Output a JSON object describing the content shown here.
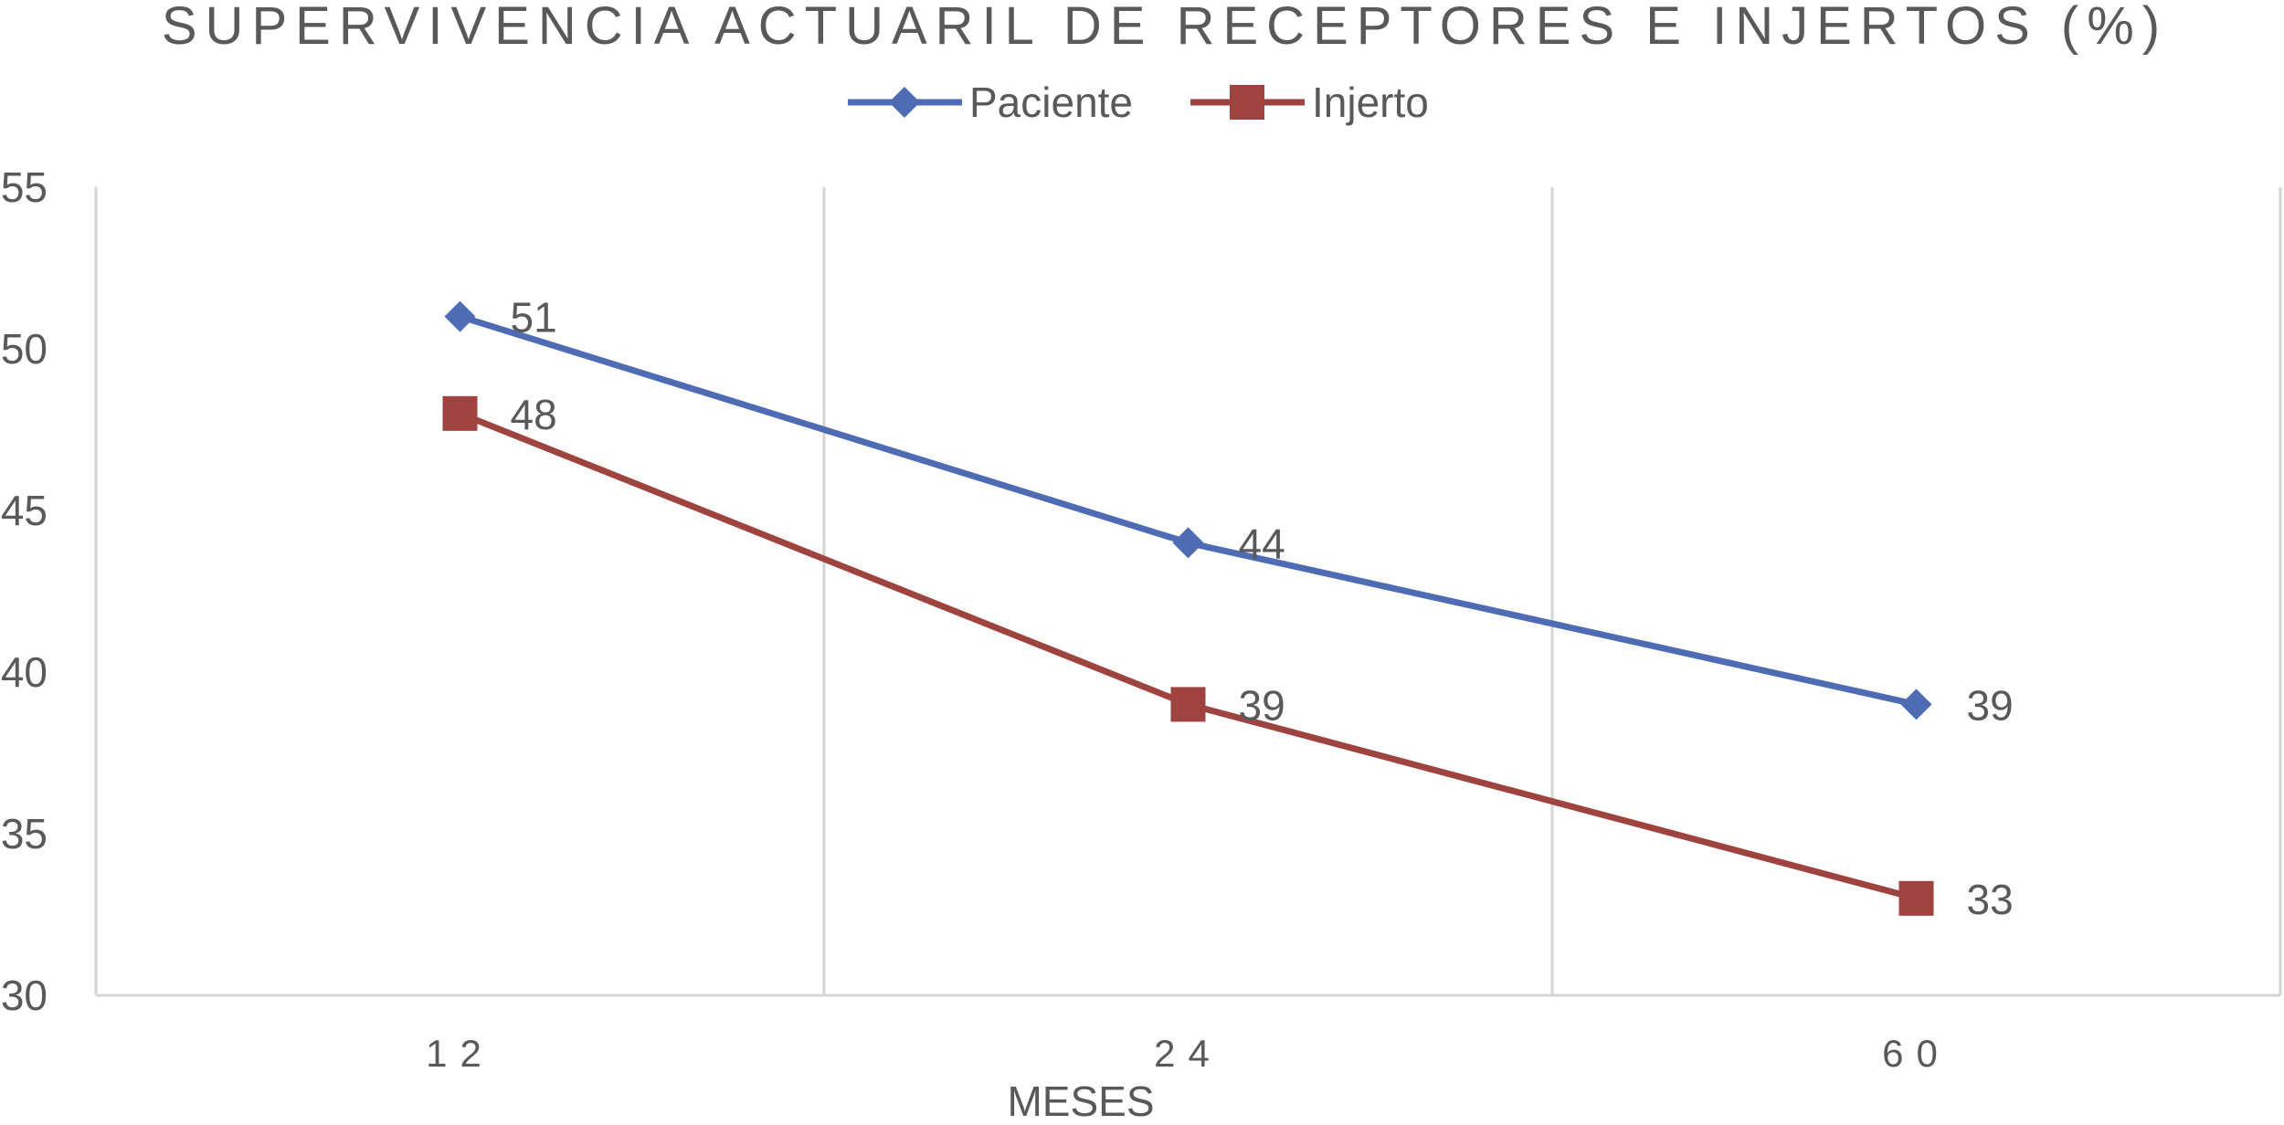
{
  "chart_data": {
    "type": "line",
    "title": "SUPERVIVENCIA ACTUARIL DE RECEPTORES E INJERTOS (%)",
    "xlabel": "MESES",
    "ylabel": "",
    "categories": [
      "12",
      "24",
      "60"
    ],
    "ylim": [
      30,
      55
    ],
    "yticks": [
      30,
      35,
      40,
      45,
      50,
      55
    ],
    "grid": "vertical",
    "legend": "top-center",
    "data_labels": true,
    "series": [
      {
        "name": "Paciente",
        "values": [
          51,
          44,
          39
        ],
        "color": "#4E6BB3",
        "marker": "diamond"
      },
      {
        "name": "Injerto",
        "values": [
          48,
          39,
          33
        ],
        "color": "#9E4340",
        "marker": "square"
      }
    ]
  },
  "colors": {
    "axis_text": "#595959",
    "grid": "#D4D4D4",
    "axis_line": "#D4D4D4",
    "title": "#595959"
  }
}
